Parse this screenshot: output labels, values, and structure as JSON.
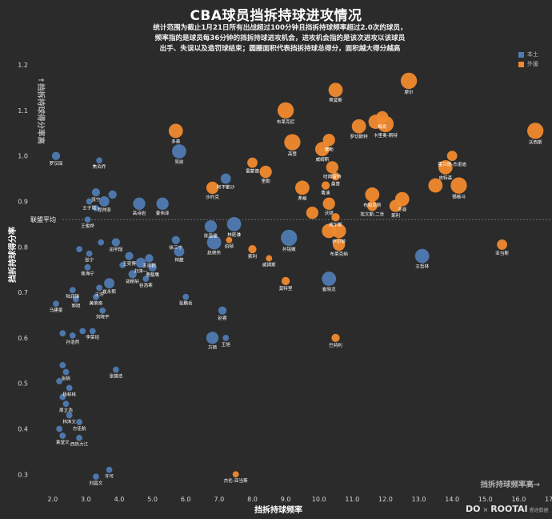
{
  "title": "CBA球员挡拆持球进攻情况",
  "subtitle_lines": [
    "统计范围为截止1月21日所有出战超过100分钟且挡拆持球频率超过2.0次的球员，",
    "频率指的是球员每36分钟的挡拆持球进攻机会，进攻机会指的是该次进攻以该球员",
    "出手、失误以及造罚球结束；圆圈面积代表挡拆持球总得分，面积越大得分越高"
  ],
  "brand": {
    "name": "DO",
    "cross": "×",
    "partner": "ROOTAI",
    "tag": "睿途数据"
  },
  "colors": {
    "background": "#2b2b2b",
    "domestic": "#4f7bb2",
    "foreign": "#f08a2e",
    "avg_line": "#7a7a7a"
  },
  "chart_data": {
    "type": "scatter",
    "title": "CBA球员挡拆持球进攻情况",
    "xlabel": "挡拆持球频率",
    "ylabel": "挡拆持球得分率",
    "x_note": "挡拆持球频率高→",
    "y_note": "↑挡拆持球得分率高",
    "xlim": [
      1.5,
      17.0
    ],
    "ylim": [
      0.26,
      1.23
    ],
    "xticks": [
      "2.0",
      "3.0",
      "4.0",
      "5.0",
      "6.0",
      "7.0",
      "8.0",
      "9.0",
      "10.0",
      "11.0",
      "12.0",
      "13.0",
      "14.0",
      "15.0",
      "16.0",
      "17.0"
    ],
    "yticks": [
      "0.3",
      "0.4",
      "0.5",
      "0.6",
      "0.7",
      "0.8",
      "0.9",
      "1.0",
      "1.1",
      "1.2"
    ],
    "grid": false,
    "reference_line": {
      "y": 0.86,
      "label": "联盟平均"
    },
    "legend": {
      "position": "top-right",
      "entries": [
        "本土",
        "外援"
      ]
    },
    "size_encoding": "挡拆持球总得分",
    "series": [
      {
        "name": "本土",
        "points": [
          {
            "x": 2.1,
            "y": 1.0,
            "label": "罗汉琛",
            "s": 3
          },
          {
            "x": 3.4,
            "y": 0.99,
            "label": "焦泊乔",
            "s": 2
          },
          {
            "x": 5.8,
            "y": 1.01,
            "label": "吴前",
            "s": 6
          },
          {
            "x": 7.2,
            "y": 0.95,
            "label": "阿不都沙",
            "s": 4
          },
          {
            "x": 3.3,
            "y": 0.92,
            "label": "张宁",
            "s": 3
          },
          {
            "x": 3.8,
            "y": 0.915,
            "label": "",
            "s": 3
          },
          {
            "x": 3.1,
            "y": 0.9,
            "label": "王子瑞",
            "s": 2
          },
          {
            "x": 3.55,
            "y": 0.9,
            "label": "程帅澎",
            "s": 4
          },
          {
            "x": 4.6,
            "y": 0.895,
            "label": "高诗岩",
            "s": 5
          },
          {
            "x": 5.3,
            "y": 0.895,
            "label": "姜伟泽",
            "s": 5
          },
          {
            "x": 3.3,
            "y": 0.885,
            "label": "",
            "s": 2
          },
          {
            "x": 3.05,
            "y": 0.86,
            "label": "王俊烨",
            "s": 2
          },
          {
            "x": 6.75,
            "y": 0.845,
            "label": "陈盈骏",
            "s": 5
          },
          {
            "x": 7.45,
            "y": 0.85,
            "label": "林庭谦",
            "s": 6
          },
          {
            "x": 5.7,
            "y": 0.815,
            "label": "徐三宁",
            "s": 3
          },
          {
            "x": 6.85,
            "y": 0.81,
            "label": "赵继伟",
            "s": 6
          },
          {
            "x": 9.1,
            "y": 0.82,
            "label": "孙铭徽",
            "s": 7
          },
          {
            "x": 3.45,
            "y": 0.81,
            "label": "",
            "s": 2
          },
          {
            "x": 3.9,
            "y": 0.81,
            "label": "田宇翔",
            "s": 3
          },
          {
            "x": 2.8,
            "y": 0.795,
            "label": "",
            "s": 2
          },
          {
            "x": 3.1,
            "y": 0.785,
            "label": "张宁",
            "s": 2
          },
          {
            "x": 4.3,
            "y": 0.78,
            "label": "王奕博",
            "s": 3
          },
          {
            "x": 4.9,
            "y": 0.775,
            "label": "王岚嵚",
            "s": 3
          },
          {
            "x": 5.8,
            "y": 0.79,
            "label": "林葳",
            "s": 4
          },
          {
            "x": 4.65,
            "y": 0.765,
            "label": "刘泽一",
            "s": 4
          },
          {
            "x": 4.1,
            "y": 0.76,
            "label": "",
            "s": 2
          },
          {
            "x": 3.05,
            "y": 0.755,
            "label": "焦海宁",
            "s": 2
          },
          {
            "x": 5.0,
            "y": 0.755,
            "label": "曹额鹰",
            "s": 3
          },
          {
            "x": 13.1,
            "y": 0.78,
            "label": "王哲林",
            "s": 6
          },
          {
            "x": 4.4,
            "y": 0.74,
            "label": "胡明轩",
            "s": 3
          },
          {
            "x": 4.8,
            "y": 0.73,
            "label": "谷浩寒",
            "s": 2
          },
          {
            "x": 3.7,
            "y": 0.72,
            "label": "崔永熙",
            "s": 4
          },
          {
            "x": 2.6,
            "y": 0.705,
            "label": "陆润锋",
            "s": 2
          },
          {
            "x": 3.4,
            "y": 0.71,
            "label": "王洪",
            "s": 2
          },
          {
            "x": 10.3,
            "y": 0.73,
            "label": "崔晓龙",
            "s": 6
          },
          {
            "x": 6.0,
            "y": 0.69,
            "label": "张鹏岳",
            "s": 2
          },
          {
            "x": 3.3,
            "y": 0.69,
            "label": "黄荣奇",
            "s": 2
          },
          {
            "x": 2.7,
            "y": 0.685,
            "label": "郭旭",
            "s": 2
          },
          {
            "x": 2.1,
            "y": 0.675,
            "label": "马建豪",
            "s": 2
          },
          {
            "x": 3.5,
            "y": 0.66,
            "label": "刘晓宇",
            "s": 2
          },
          {
            "x": 7.1,
            "y": 0.66,
            "label": "赵睿",
            "s": 3
          },
          {
            "x": 2.9,
            "y": 0.615,
            "label": "",
            "s": 2
          },
          {
            "x": 3.2,
            "y": 0.615,
            "label": "李荣培",
            "s": 2
          },
          {
            "x": 2.3,
            "y": 0.61,
            "label": "",
            "s": 2
          },
          {
            "x": 2.6,
            "y": 0.605,
            "label": "孙浩然",
            "s": 2
          },
          {
            "x": 6.8,
            "y": 0.6,
            "label": "方硕",
            "s": 5
          },
          {
            "x": 7.2,
            "y": 0.6,
            "label": "王旭",
            "s": 2
          },
          {
            "x": 2.3,
            "y": 0.54,
            "label": "",
            "s": 2
          },
          {
            "x": 2.4,
            "y": 0.525,
            "label": "张帆",
            "s": 2
          },
          {
            "x": 3.9,
            "y": 0.53,
            "label": "张镇浩",
            "s": 2
          },
          {
            "x": 2.2,
            "y": 0.505,
            "label": "",
            "s": 2
          },
          {
            "x": 2.5,
            "y": 0.49,
            "label": "杨林林",
            "s": 2
          },
          {
            "x": 2.3,
            "y": 0.47,
            "label": "",
            "s": 2
          },
          {
            "x": 2.4,
            "y": 0.455,
            "label": "周立浩",
            "s": 2
          },
          {
            "x": 2.5,
            "y": 0.43,
            "label": "林泽文",
            "s": 2
          },
          {
            "x": 2.8,
            "y": 0.415,
            "label": "方佳航",
            "s": 2
          },
          {
            "x": 2.2,
            "y": 0.4,
            "label": "",
            "s": 2
          },
          {
            "x": 2.3,
            "y": 0.385,
            "label": "袁堂文",
            "s": 2
          },
          {
            "x": 2.8,
            "y": 0.38,
            "label": "西热力江",
            "s": 2
          },
          {
            "x": 3.7,
            "y": 0.31,
            "label": "许可",
            "s": 2
          },
          {
            "x": 3.3,
            "y": 0.295,
            "label": "刘昌文",
            "s": 2
          }
        ]
      },
      {
        "name": "外援",
        "points": [
          {
            "x": 12.7,
            "y": 1.165,
            "label": "摩尔",
            "s": 7
          },
          {
            "x": 10.5,
            "y": 1.145,
            "label": "蒂莫斯",
            "s": 6
          },
          {
            "x": 11.9,
            "y": 1.085,
            "label": "梅肯",
            "s": 5
          },
          {
            "x": 11.7,
            "y": 1.075,
            "label": "",
            "s": 6
          },
          {
            "x": 11.2,
            "y": 1.065,
            "label": "罗切斯特",
            "s": 6
          },
          {
            "x": 9.0,
            "y": 1.1,
            "label": "布莱克尼",
            "s": 7
          },
          {
            "x": 12.0,
            "y": 1.07,
            "label": "卡里奥-斯特",
            "s": 7
          },
          {
            "x": 10.3,
            "y": 1.035,
            "label": "泰勒",
            "s": 5
          },
          {
            "x": 9.2,
            "y": 1.03,
            "label": "高登",
            "s": 7
          },
          {
            "x": 10.1,
            "y": 1.015,
            "label": "威姆斯",
            "s": 6
          },
          {
            "x": 16.5,
            "y": 1.055,
            "label": "沃西斯",
            "s": 7
          },
          {
            "x": 5.7,
            "y": 1.055,
            "label": "多森",
            "s": 6
          },
          {
            "x": 14.0,
            "y": 1.0,
            "label": "霍兰德-杰诺迪",
            "s": 4
          },
          {
            "x": 13.8,
            "y": 0.975,
            "label": "皮特森",
            "s": 6
          },
          {
            "x": 8.0,
            "y": 0.985,
            "label": "雷蒙德",
            "s": 4
          },
          {
            "x": 8.4,
            "y": 0.965,
            "label": "里勒",
            "s": 5
          },
          {
            "x": 10.4,
            "y": 0.975,
            "label": "哈姆雷特",
            "s": 5
          },
          {
            "x": 10.5,
            "y": 0.955,
            "label": "桑普",
            "s": 3
          },
          {
            "x": 9.5,
            "y": 0.93,
            "label": "弗格",
            "s": 6
          },
          {
            "x": 10.2,
            "y": 0.935,
            "label": "鲁迪",
            "s": 3
          },
          {
            "x": 6.8,
            "y": 0.93,
            "label": "沙约克",
            "s": 5
          },
          {
            "x": 13.5,
            "y": 0.935,
            "label": "",
            "s": 6
          },
          {
            "x": 14.2,
            "y": 0.935,
            "label": "锡格马",
            "s": 7
          },
          {
            "x": 11.6,
            "y": 0.915,
            "label": "布伯克斯",
            "s": 6
          },
          {
            "x": 12.5,
            "y": 0.905,
            "label": "杰曼",
            "s": 6
          },
          {
            "x": 10.3,
            "y": 0.895,
            "label": "沃顿",
            "s": 5
          },
          {
            "x": 11.6,
            "y": 0.89,
            "label": "埃文斯-二世",
            "s": 4
          },
          {
            "x": 12.3,
            "y": 0.89,
            "label": "莱利",
            "s": 5
          },
          {
            "x": 9.8,
            "y": 0.875,
            "label": "",
            "s": 5
          },
          {
            "x": 10.5,
            "y": 0.865,
            "label": "威尔斯",
            "s": 3
          },
          {
            "x": 10.3,
            "y": 0.835,
            "label": "",
            "s": 6
          },
          {
            "x": 10.6,
            "y": 0.835,
            "label": "萨尔菲",
            "s": 6
          },
          {
            "x": 10.6,
            "y": 0.805,
            "label": "布莱克纳",
            "s": 5
          },
          {
            "x": 7.3,
            "y": 0.815,
            "label": "伯顿",
            "s": 2
          },
          {
            "x": 8.0,
            "y": 0.795,
            "label": "索利",
            "s": 3
          },
          {
            "x": 8.5,
            "y": 0.775,
            "label": "威姆斯",
            "s": 2
          },
          {
            "x": 9.0,
            "y": 0.725,
            "label": "莫特里",
            "s": 3
          },
          {
            "x": 15.5,
            "y": 0.805,
            "label": "亚当斯",
            "s": 4
          },
          {
            "x": 10.5,
            "y": 0.6,
            "label": "巴特利",
            "s": 3
          },
          {
            "x": 7.5,
            "y": 0.3,
            "label": "杰伦-亚当斯",
            "s": 2
          }
        ]
      }
    ]
  }
}
